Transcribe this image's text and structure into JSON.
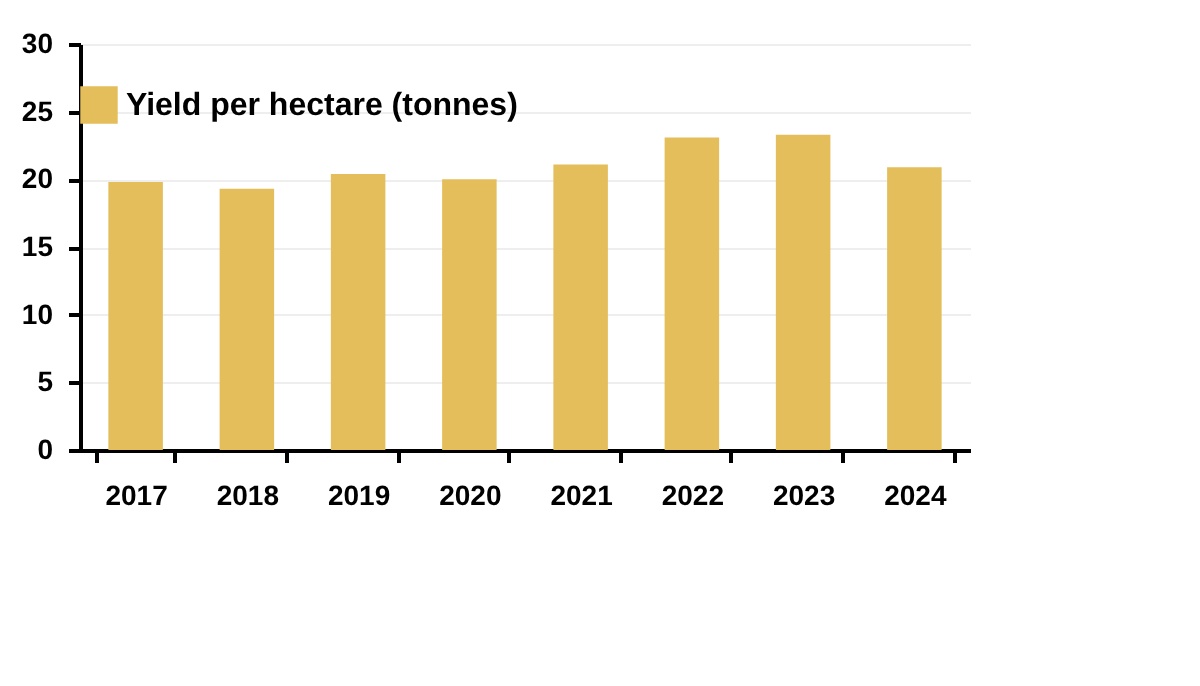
{
  "chart_data": {
    "type": "bar",
    "categories": [
      "2017",
      "2018",
      "2019",
      "2020",
      "2021",
      "2022",
      "2023",
      "2024"
    ],
    "series": [
      {
        "name": "Yield per hectare (tonnes)",
        "color": "#e4be5a",
        "values": [
          19.8,
          19.3,
          20.4,
          20.0,
          21.1,
          23.1,
          23.3,
          20.9
        ]
      }
    ],
    "ylim": [
      0,
      30
    ],
    "yticks": [
      0,
      5,
      10,
      15,
      20,
      25,
      30
    ],
    "grid": "y",
    "legend": "top"
  }
}
